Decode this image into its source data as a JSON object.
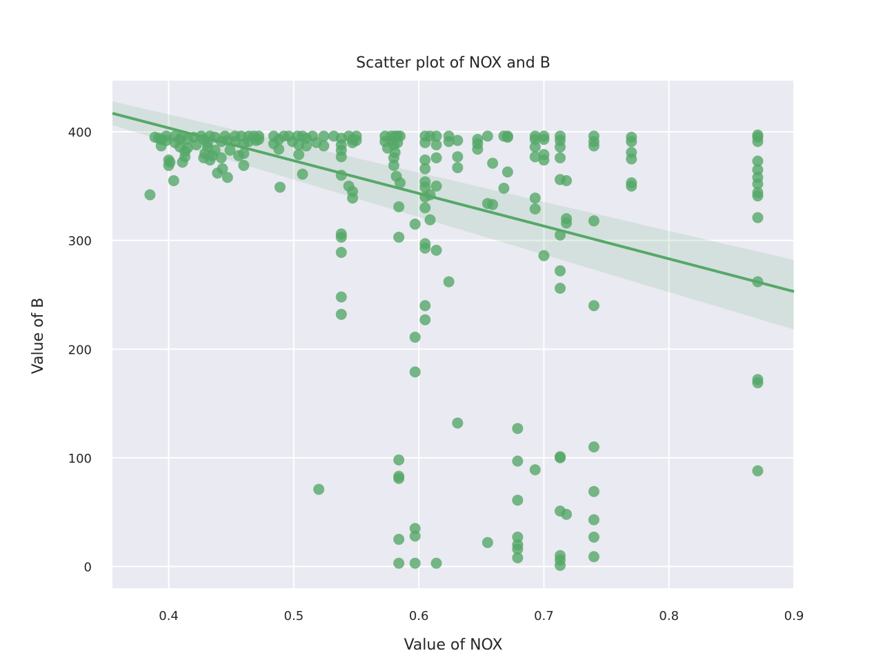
{
  "chart_data": {
    "type": "scatter",
    "title": "Scatter plot of NOX and B",
    "xlabel": "Value of NOX",
    "ylabel": "Value of B",
    "xlim": [
      0.355,
      0.9
    ],
    "ylim": [
      -20,
      447
    ],
    "xticks": [
      0.4,
      0.5,
      0.6,
      0.7,
      0.8,
      0.9
    ],
    "xtick_labels": [
      "0.4",
      "0.5",
      "0.6",
      "0.7",
      "0.8",
      "0.9"
    ],
    "yticks": [
      0,
      100,
      200,
      300,
      400
    ],
    "ytick_labels": [
      "0",
      "100",
      "200",
      "300",
      "400"
    ],
    "grid": true,
    "colors": {
      "background": "#eaeaf2",
      "grid": "#ffffff",
      "points": "#55a868",
      "fit_line": "#55a868",
      "ci_band": "#55a868"
    },
    "regression": {
      "x": [
        0.355,
        0.9
      ],
      "y": [
        417,
        253
      ],
      "ci_upper": [
        428,
        282
      ],
      "ci_lower": [
        406,
        218
      ]
    },
    "points": [
      [
        0.385,
        342
      ],
      [
        0.389,
        395
      ],
      [
        0.392,
        394
      ],
      [
        0.394,
        393
      ],
      [
        0.394,
        387
      ],
      [
        0.398,
        396
      ],
      [
        0.398,
        392
      ],
      [
        0.4,
        374
      ],
      [
        0.4,
        369
      ],
      [
        0.401,
        372
      ],
      [
        0.404,
        355
      ],
      [
        0.405,
        390
      ],
      [
        0.405,
        396
      ],
      [
        0.409,
        393
      ],
      [
        0.409,
        386
      ],
      [
        0.411,
        396
      ],
      [
        0.411,
        372
      ],
      [
        0.413,
        382
      ],
      [
        0.413,
        377
      ],
      [
        0.415,
        393
      ],
      [
        0.415,
        385
      ],
      [
        0.42,
        395
      ],
      [
        0.422,
        388
      ],
      [
        0.426,
        396
      ],
      [
        0.428,
        393
      ],
      [
        0.428,
        376
      ],
      [
        0.429,
        380
      ],
      [
        0.431,
        390
      ],
      [
        0.431,
        386
      ],
      [
        0.433,
        396
      ],
      [
        0.433,
        374
      ],
      [
        0.435,
        378
      ],
      [
        0.437,
        395
      ],
      [
        0.437,
        383
      ],
      [
        0.439,
        362
      ],
      [
        0.442,
        391
      ],
      [
        0.442,
        376
      ],
      [
        0.443,
        366
      ],
      [
        0.445,
        396
      ],
      [
        0.447,
        392
      ],
      [
        0.447,
        358
      ],
      [
        0.449,
        383
      ],
      [
        0.453,
        396
      ],
      [
        0.453,
        391
      ],
      [
        0.456,
        378
      ],
      [
        0.458,
        396
      ],
      [
        0.46,
        389
      ],
      [
        0.46,
        380
      ],
      [
        0.46,
        369
      ],
      [
        0.464,
        396
      ],
      [
        0.464,
        391
      ],
      [
        0.468,
        396
      ],
      [
        0.47,
        392
      ],
      [
        0.472,
        396
      ],
      [
        0.472,
        393
      ],
      [
        0.484,
        396
      ],
      [
        0.484,
        389
      ],
      [
        0.488,
        393
      ],
      [
        0.488,
        384
      ],
      [
        0.489,
        349
      ],
      [
        0.492,
        396
      ],
      [
        0.496,
        396
      ],
      [
        0.499,
        391
      ],
      [
        0.503,
        396
      ],
      [
        0.504,
        388
      ],
      [
        0.504,
        379
      ],
      [
        0.507,
        396
      ],
      [
        0.507,
        361
      ],
      [
        0.51,
        394
      ],
      [
        0.51,
        387
      ],
      [
        0.515,
        396
      ],
      [
        0.518,
        390
      ],
      [
        0.52,
        71
      ],
      [
        0.524,
        396
      ],
      [
        0.524,
        387
      ],
      [
        0.532,
        396
      ],
      [
        0.538,
        394
      ],
      [
        0.538,
        388
      ],
      [
        0.538,
        383
      ],
      [
        0.538,
        377
      ],
      [
        0.538,
        360
      ],
      [
        0.538,
        306
      ],
      [
        0.538,
        303
      ],
      [
        0.538,
        289
      ],
      [
        0.538,
        248
      ],
      [
        0.538,
        232
      ],
      [
        0.544,
        396
      ],
      [
        0.544,
        350
      ],
      [
        0.547,
        393
      ],
      [
        0.547,
        390
      ],
      [
        0.547,
        345
      ],
      [
        0.547,
        339
      ],
      [
        0.55,
        396
      ],
      [
        0.55,
        392
      ],
      [
        0.573,
        396
      ],
      [
        0.573,
        391
      ],
      [
        0.575,
        385
      ],
      [
        0.578,
        396
      ],
      [
        0.578,
        392
      ],
      [
        0.58,
        388
      ],
      [
        0.58,
        376
      ],
      [
        0.581,
        396
      ],
      [
        0.581,
        381
      ],
      [
        0.583,
        396
      ],
      [
        0.583,
        390
      ],
      [
        0.584,
        98
      ],
      [
        0.584,
        83
      ],
      [
        0.584,
        81
      ],
      [
        0.584,
        25
      ],
      [
        0.584,
        3
      ],
      [
        0.585,
        396
      ],
      [
        0.585,
        353
      ],
      [
        0.584,
        331
      ],
      [
        0.584,
        303
      ],
      [
        0.58,
        369
      ],
      [
        0.582,
        359
      ],
      [
        0.597,
        315
      ],
      [
        0.597,
        211
      ],
      [
        0.597,
        179
      ],
      [
        0.597,
        35
      ],
      [
        0.597,
        28
      ],
      [
        0.597,
        3
      ],
      [
        0.605,
        396
      ],
      [
        0.605,
        390
      ],
      [
        0.605,
        374
      ],
      [
        0.605,
        366
      ],
      [
        0.605,
        354
      ],
      [
        0.605,
        349
      ],
      [
        0.605,
        340
      ],
      [
        0.605,
        330
      ],
      [
        0.605,
        297
      ],
      [
        0.605,
        293
      ],
      [
        0.605,
        240
      ],
      [
        0.605,
        227
      ],
      [
        0.609,
        396
      ],
      [
        0.609,
        342
      ],
      [
        0.609,
        319
      ],
      [
        0.614,
        396
      ],
      [
        0.614,
        388
      ],
      [
        0.614,
        376
      ],
      [
        0.614,
        350
      ],
      [
        0.614,
        291
      ],
      [
        0.614,
        3
      ],
      [
        0.624,
        396
      ],
      [
        0.624,
        391
      ],
      [
        0.624,
        262
      ],
      [
        0.631,
        392
      ],
      [
        0.631,
        377
      ],
      [
        0.631,
        367
      ],
      [
        0.631,
        132
      ],
      [
        0.647,
        393
      ],
      [
        0.647,
        389
      ],
      [
        0.647,
        384
      ],
      [
        0.655,
        396
      ],
      [
        0.655,
        334
      ],
      [
        0.655,
        22
      ],
      [
        0.659,
        371
      ],
      [
        0.659,
        333
      ],
      [
        0.668,
        396
      ],
      [
        0.668,
        348
      ],
      [
        0.671,
        396
      ],
      [
        0.671,
        395
      ],
      [
        0.671,
        363
      ],
      [
        0.679,
        127
      ],
      [
        0.679,
        97
      ],
      [
        0.679,
        61
      ],
      [
        0.679,
        27
      ],
      [
        0.679,
        20
      ],
      [
        0.679,
        16
      ],
      [
        0.679,
        8
      ],
      [
        0.693,
        396
      ],
      [
        0.693,
        393
      ],
      [
        0.693,
        386
      ],
      [
        0.693,
        377
      ],
      [
        0.693,
        339
      ],
      [
        0.693,
        329
      ],
      [
        0.693,
        89
      ],
      [
        0.7,
        396
      ],
      [
        0.7,
        393
      ],
      [
        0.7,
        379
      ],
      [
        0.7,
        374
      ],
      [
        0.7,
        286
      ],
      [
        0.713,
        396
      ],
      [
        0.713,
        392
      ],
      [
        0.713,
        386
      ],
      [
        0.713,
        376
      ],
      [
        0.713,
        356
      ],
      [
        0.713,
        305
      ],
      [
        0.713,
        272
      ],
      [
        0.713,
        256
      ],
      [
        0.713,
        101
      ],
      [
        0.713,
        100
      ],
      [
        0.713,
        51
      ],
      [
        0.713,
        10
      ],
      [
        0.713,
        6
      ],
      [
        0.713,
        1
      ],
      [
        0.718,
        355
      ],
      [
        0.718,
        320
      ],
      [
        0.718,
        316
      ],
      [
        0.718,
        48
      ],
      [
        0.74,
        396
      ],
      [
        0.74,
        391
      ],
      [
        0.74,
        387
      ],
      [
        0.74,
        318
      ],
      [
        0.74,
        240
      ],
      [
        0.74,
        110
      ],
      [
        0.74,
        69
      ],
      [
        0.74,
        43
      ],
      [
        0.74,
        27
      ],
      [
        0.74,
        9
      ],
      [
        0.77,
        395
      ],
      [
        0.77,
        391
      ],
      [
        0.77,
        381
      ],
      [
        0.77,
        375
      ],
      [
        0.77,
        353
      ],
      [
        0.77,
        350
      ],
      [
        0.871,
        397
      ],
      [
        0.871,
        395
      ],
      [
        0.871,
        391
      ],
      [
        0.871,
        373
      ],
      [
        0.871,
        365
      ],
      [
        0.871,
        358
      ],
      [
        0.871,
        352
      ],
      [
        0.871,
        344
      ],
      [
        0.871,
        341
      ],
      [
        0.871,
        321
      ],
      [
        0.871,
        262
      ],
      [
        0.871,
        172
      ],
      [
        0.871,
        169
      ],
      [
        0.871,
        88
      ]
    ]
  }
}
